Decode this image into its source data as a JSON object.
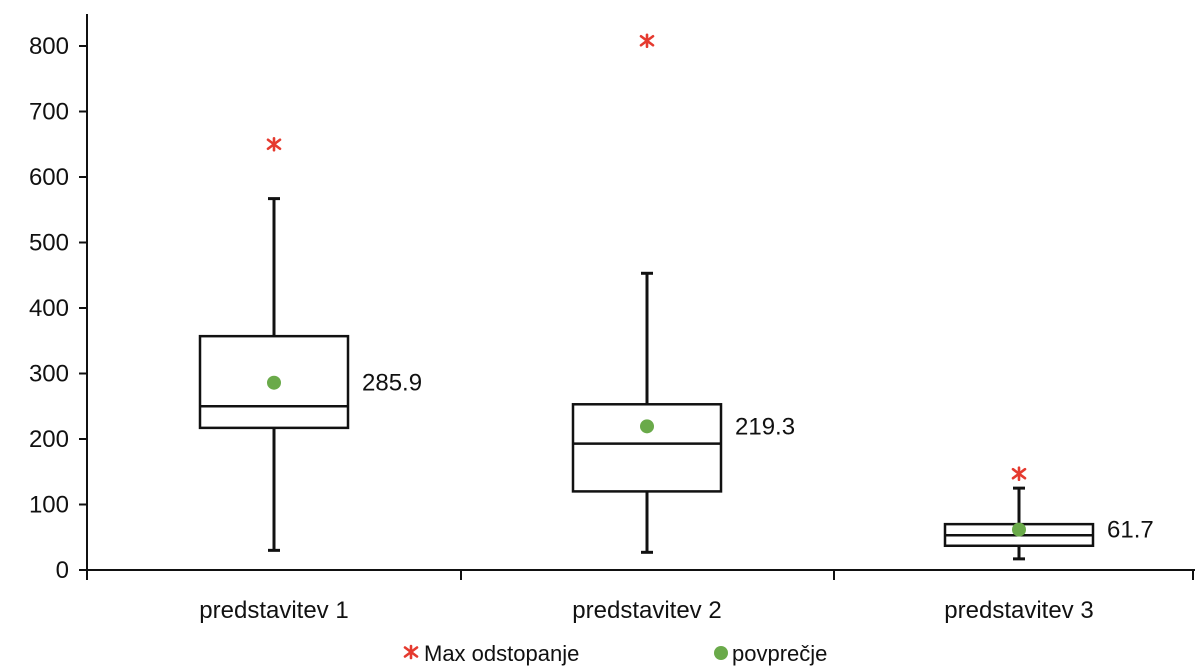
{
  "chart_data": {
    "type": "boxplot",
    "title": "",
    "xlabel": "",
    "ylabel": "",
    "ylim": [
      0,
      800
    ],
    "yticks": [
      "0",
      "100",
      "200",
      "300",
      "400",
      "500",
      "600",
      "700",
      "800"
    ],
    "categories": [
      "predstavitev 1",
      "predstavitev 2",
      "predstavitev 3"
    ],
    "boxes": [
      {
        "min": 30,
        "q1": 217,
        "median": 250,
        "q3": 357,
        "max": 567,
        "mean": 285.9,
        "mean_label": "285.9",
        "max_deviation": 650
      },
      {
        "min": 27,
        "q1": 120,
        "median": 193,
        "q3": 253,
        "max": 453,
        "mean": 219.3,
        "mean_label": "219.3",
        "max_deviation": 808
      },
      {
        "min": 17,
        "q1": 37,
        "median": 53,
        "q3": 70,
        "max": 125,
        "mean": 61.7,
        "mean_label": "61.7",
        "max_deviation": 147
      }
    ],
    "legend": {
      "placement": "bottom",
      "items": [
        {
          "label": "Max odstopanje",
          "marker": "asterisk",
          "color": "#e53a2f"
        },
        {
          "label": "povprečje",
          "marker": "dot",
          "color": "#6aaa4a"
        }
      ]
    },
    "grid": false,
    "colors": {
      "box": "#111111",
      "mean": "#6aaa4a",
      "max_deviation": "#e53a2f"
    }
  }
}
